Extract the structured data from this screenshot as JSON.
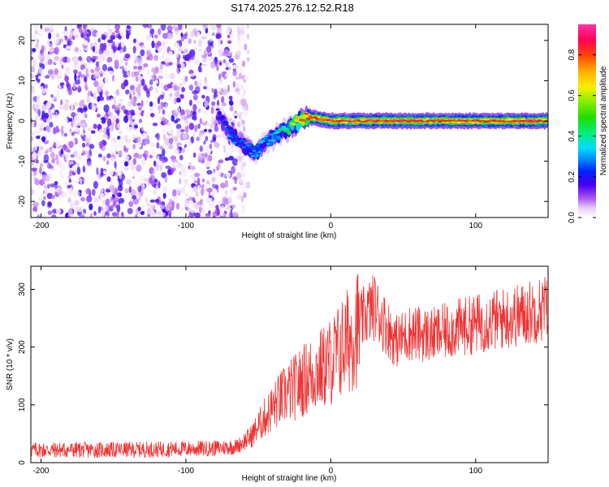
{
  "title": "S174.2025.276.12.52.R18",
  "chart_data": [
    {
      "type": "heatmap",
      "xlabel": "Height of straight line (km)",
      "ylabel": "Frequency (Hz)",
      "xlim": [
        -207,
        150
      ],
      "ylim": [
        -24,
        24
      ],
      "xticks": [
        -200,
        -100,
        0,
        100
      ],
      "yticks": [
        -20,
        -10,
        0,
        10,
        20
      ],
      "noise_region": {
        "x_start": -207,
        "x_end": -65,
        "level": "low (0.05-0.2)"
      },
      "signal_track": {
        "x": [
          -78,
          -70,
          -60,
          -52,
          -45,
          -38,
          -30,
          -20,
          -15,
          0,
          50,
          100,
          150
        ],
        "frequency_hz": [
          2,
          -3,
          -6,
          -8,
          -5,
          -4,
          -2,
          0.5,
          1,
          0,
          0,
          0,
          0
        ],
        "amplitude": [
          0.2,
          0.3,
          0.3,
          0.35,
          0.35,
          0.4,
          0.5,
          0.9,
          0.95,
          0.95,
          0.95,
          0.95,
          0.95
        ]
      },
      "colorbar": {
        "label": "Normalized spectral amplitude",
        "range": [
          0,
          0.95
        ],
        "ticks": [
          0.0,
          0.2,
          0.4,
          0.6,
          0.8
        ],
        "tick_labels": [
          "0.0",
          "0.2",
          "0.4",
          "0.6",
          "0.8"
        ]
      }
    },
    {
      "type": "line",
      "xlabel": "Height of straight line (km)",
      "ylabel": "SNR (10 * v/v)",
      "xlim": [
        -207,
        150
      ],
      "ylim": [
        0,
        340
      ],
      "xticks": [
        -200,
        -100,
        0,
        100
      ],
      "yticks": [
        0,
        100,
        200,
        300
      ],
      "series": [
        {
          "name": "SNR",
          "color": "#ee3333",
          "x": [
            -207,
            -180,
            -150,
            -120,
            -100,
            -80,
            -65,
            -55,
            -45,
            -35,
            -25,
            -15,
            -5,
            0,
            10,
            20,
            25,
            30,
            35,
            45,
            55,
            70,
            90,
            110,
            130,
            150
          ],
          "y": [
            22,
            22,
            22,
            23,
            24,
            25,
            28,
            45,
            80,
            110,
            130,
            150,
            165,
            175,
            205,
            240,
            260,
            270,
            250,
            210,
            225,
            220,
            235,
            245,
            255,
            270
          ]
        }
      ]
    }
  ]
}
